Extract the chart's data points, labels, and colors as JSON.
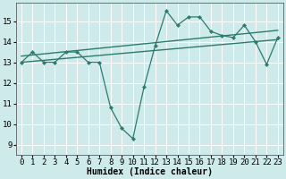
{
  "y_main": [
    13.0,
    13.5,
    13.0,
    13.0,
    13.5,
    13.5,
    13.0,
    13.0,
    10.8,
    9.8,
    9.3,
    11.8,
    13.8,
    15.5,
    14.8,
    15.2,
    15.2,
    14.5,
    14.3,
    14.2,
    14.8,
    14.0,
    12.9,
    14.2
  ],
  "trend1_y": [
    13.0,
    14.1
  ],
  "trend2_y": [
    13.3,
    14.55
  ],
  "line_color": "#2d7b6e",
  "bg_color": "#ceeaea",
  "grid_color": "#ffffff",
  "xlabel": "Humidex (Indice chaleur)",
  "ylabel_ticks": [
    9,
    10,
    11,
    12,
    13,
    14,
    15
  ],
  "ylim": [
    8.5,
    15.9
  ],
  "xlim": [
    -0.5,
    23.5
  ],
  "figsize": [
    3.2,
    2.0
  ],
  "dpi": 100,
  "xlabel_fontsize": 7,
  "tick_fontsize": 6.5
}
